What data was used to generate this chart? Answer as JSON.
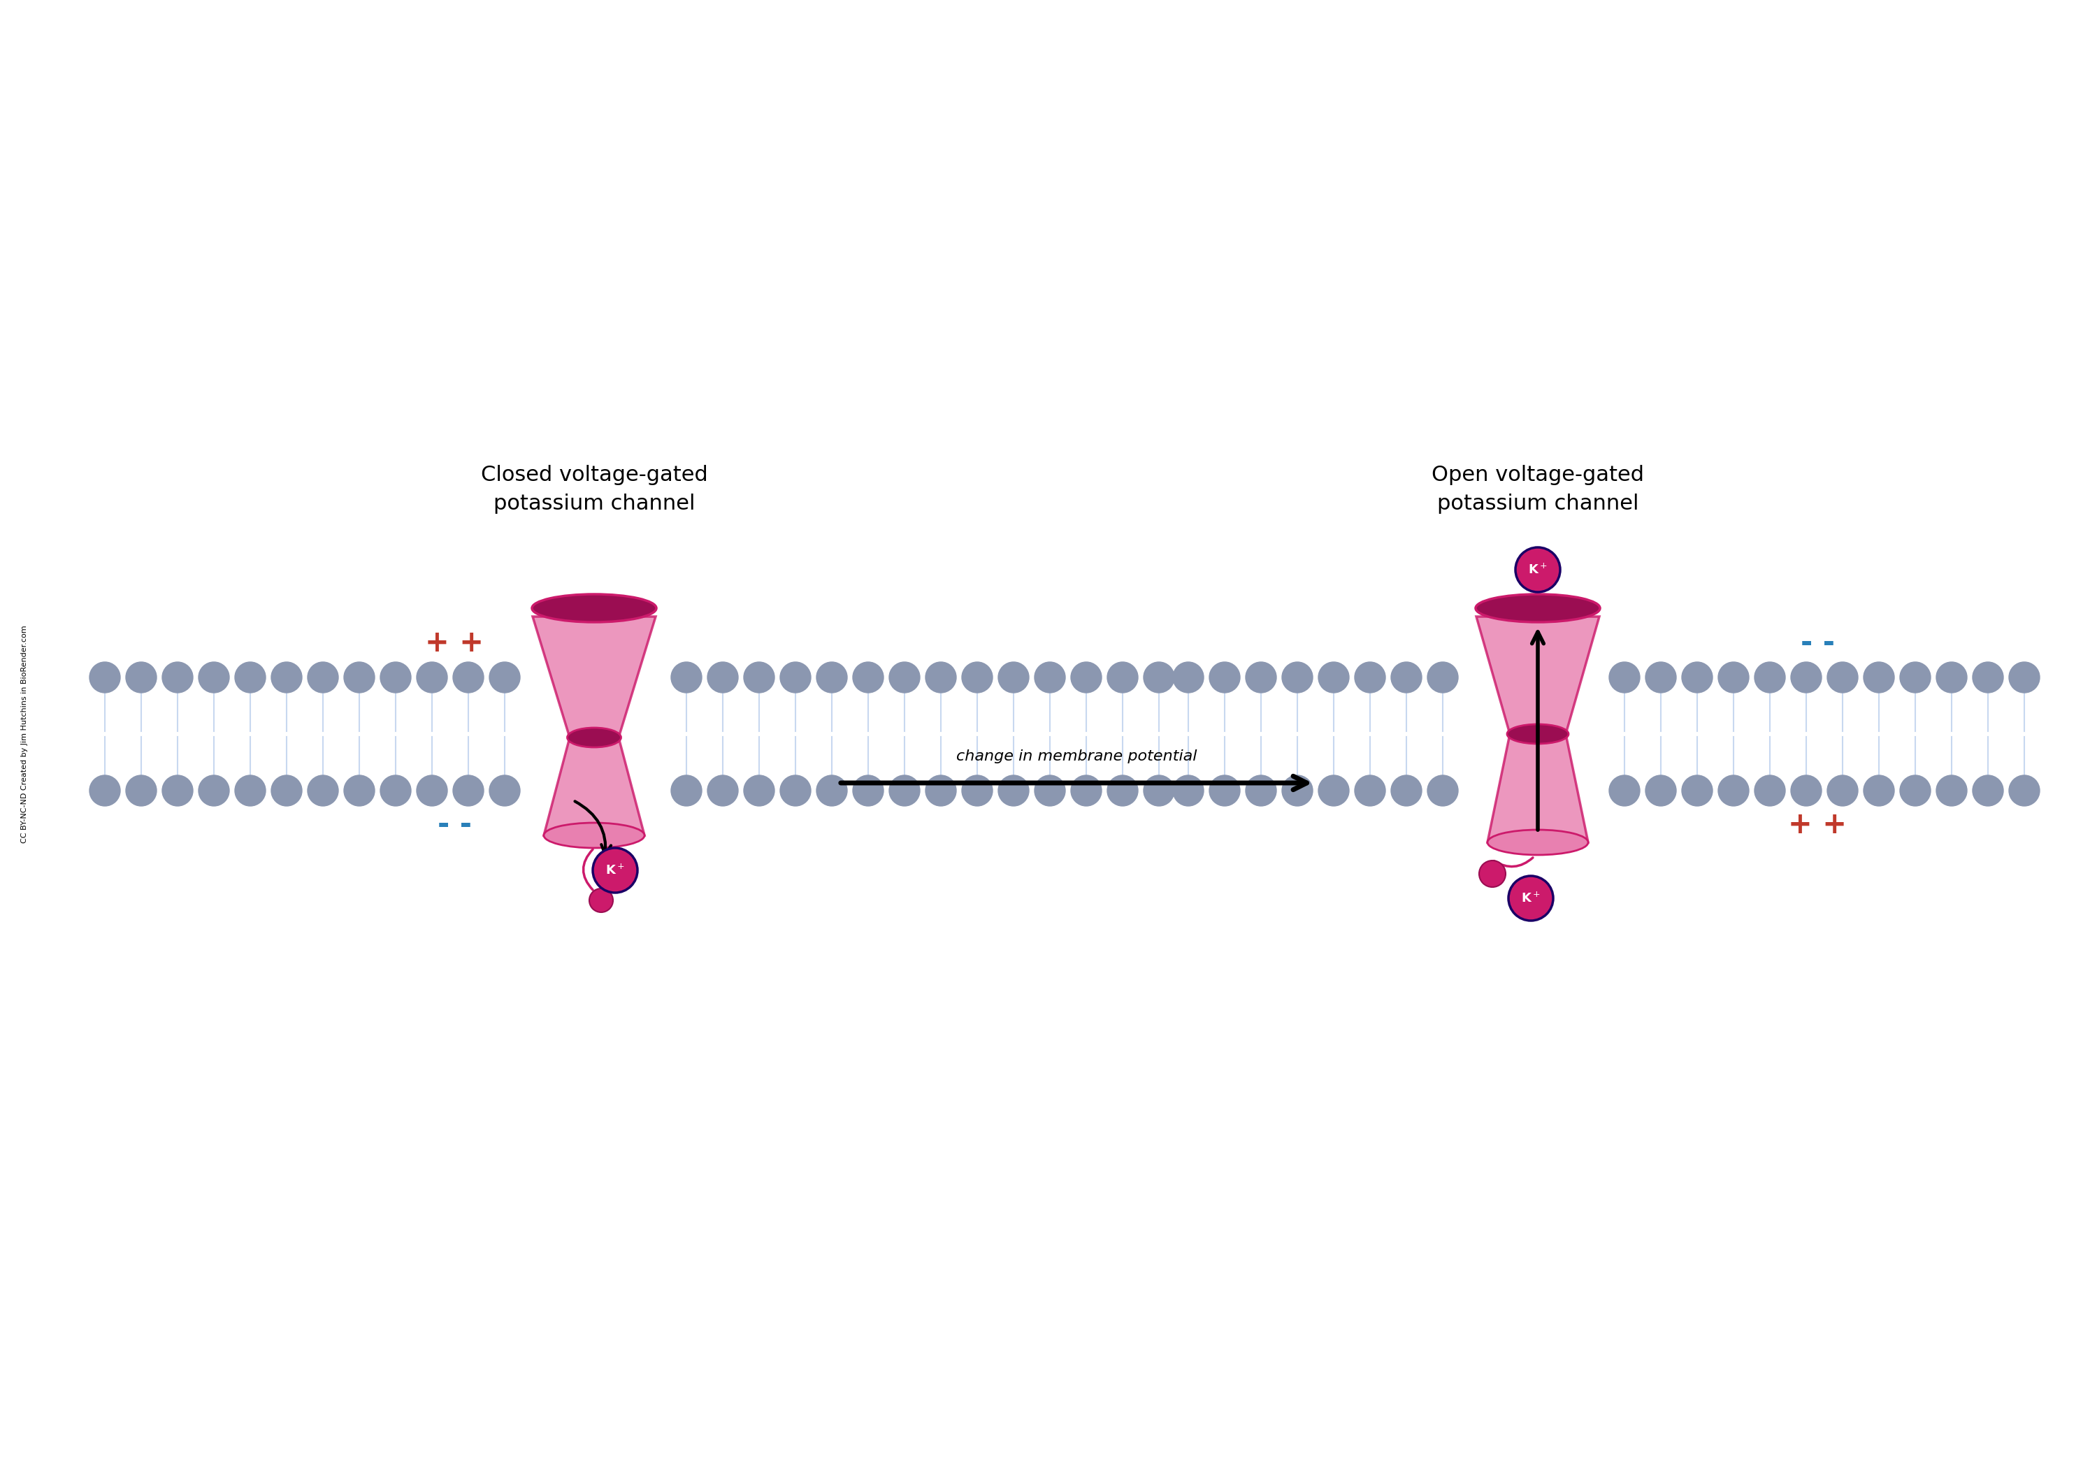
{
  "title_closed": "Closed voltage-gated\npotassium channel",
  "title_open": "Open voltage-gated\npotassium channel",
  "arrow_label": "change in membrane potential",
  "credit": "CC BY-NC-ND Created by Jim Hutchins in BioRender.com",
  "channel_color": "#CC1A6B",
  "channel_color_dark": "#9B0D52",
  "channel_color_light": "#E85A9A",
  "channel_color_alpha": "#E880B0",
  "membrane_head_color": "#8B97B0",
  "membrane_tail_color": "#C8D8F0",
  "k_ion_color": "#CC1A6B",
  "k_ion_border": "#1A0066",
  "plus_color": "#C0392B",
  "minus_color": "#2980B9",
  "bg_color": "#FFFFFF",
  "fig_width": 30,
  "fig_height": 21
}
